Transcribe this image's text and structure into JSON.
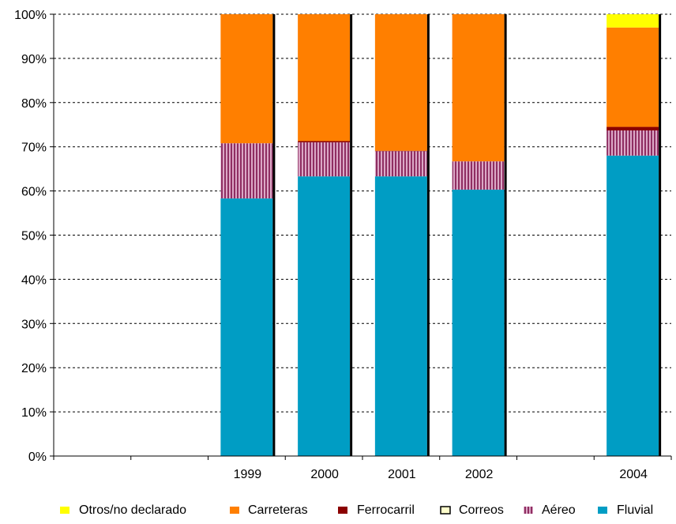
{
  "chart_data": {
    "type": "bar",
    "stacked": true,
    "percent": true,
    "categories": [
      "",
      "",
      "1999",
      "2000",
      "2001",
      "2002",
      "",
      "2004"
    ],
    "y_ticks": [
      "0%",
      "10%",
      "20%",
      "30%",
      "40%",
      "50%",
      "60%",
      "70%",
      "80%",
      "90%",
      "100%"
    ],
    "ylim": [
      0,
      100
    ],
    "grid": "horizontal-dashed",
    "legend_position": "bottom",
    "series": [
      {
        "name": "Fluvial",
        "color": "#009dc4",
        "pattern": "solid",
        "values": [
          0,
          0,
          58.3,
          63.3,
          63.3,
          60.3,
          0,
          68.0
        ]
      },
      {
        "name": "Aéreo",
        "color": "#993366",
        "pattern": "vertical-stripes",
        "values": [
          0,
          0,
          12.5,
          7.7,
          5.7,
          6.4,
          0,
          5.7
        ]
      },
      {
        "name": "Correos",
        "color": "#ffffcc",
        "pattern": "outline",
        "values": [
          0,
          0,
          0,
          0,
          0,
          0,
          0,
          0
        ]
      },
      {
        "name": "Ferrocarril",
        "color": "#8b0000",
        "pattern": "solid",
        "values": [
          0,
          0,
          0,
          0.3,
          0.1,
          0,
          0,
          0.8
        ]
      },
      {
        "name": "Carreteras",
        "color": "#ff7f00",
        "pattern": "solid",
        "values": [
          0,
          0,
          29.2,
          28.7,
          30.9,
          33.3,
          0,
          22.5
        ]
      },
      {
        "name": "Otros/no declarado",
        "color": "#ffff00",
        "pattern": "solid",
        "values": [
          0,
          0,
          0,
          0,
          0,
          0,
          0,
          3.0
        ]
      }
    ],
    "legend_order": [
      "Otros/no declarado",
      "Carreteras",
      "Ferrocarril",
      "Correos",
      "Aéreo",
      "Fluvial"
    ]
  }
}
